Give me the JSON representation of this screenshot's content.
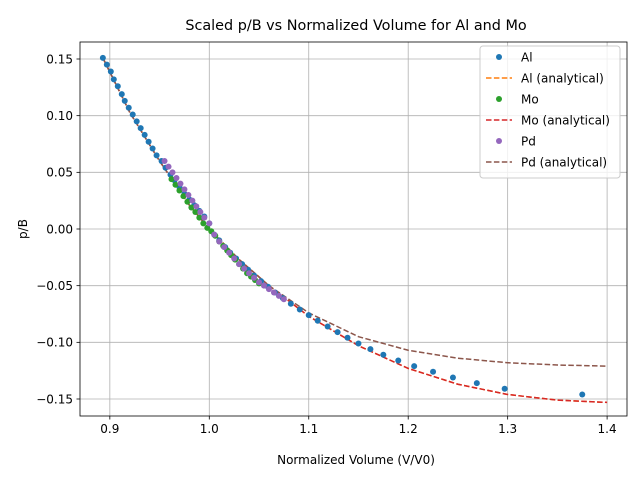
{
  "chart_data": {
    "type": "scatter",
    "title": "Scaled p/B vs Normalized Volume for Al and Mo",
    "xlabel": "Normalized Volume (V/V0)",
    "ylabel": "p/B",
    "xlim": [
      0.87,
      1.42
    ],
    "ylim": [
      -0.165,
      0.165
    ],
    "xticks": [
      0.9,
      1.0,
      1.1,
      1.2,
      1.3,
      1.4
    ],
    "xtick_labels": [
      "0.9",
      "1.0",
      "1.1",
      "1.2",
      "1.3",
      "1.4"
    ],
    "yticks": [
      -0.15,
      -0.1,
      -0.05,
      0.0,
      0.05,
      0.1,
      0.15
    ],
    "ytick_labels": [
      "−0.15",
      "−0.10",
      "−0.05",
      "0.00",
      "0.05",
      "0.10",
      "0.15"
    ],
    "grid": true,
    "legend_position": "top-right",
    "series": [
      {
        "name": "Al",
        "kind": "points",
        "color": "#1f77b4",
        "x": [
          0.893,
          0.897,
          0.901,
          0.904,
          0.908,
          0.912,
          0.915,
          0.919,
          0.923,
          0.927,
          0.931,
          0.935,
          0.939,
          0.943,
          0.947,
          0.952,
          0.956,
          0.961,
          0.965,
          0.97,
          0.975,
          0.98,
          0.985,
          0.99,
          0.995,
          1.0,
          1.005,
          1.01,
          1.016,
          1.021,
          1.027,
          1.033,
          1.039,
          1.045,
          1.052,
          1.059,
          1.066,
          1.074,
          1.082,
          1.091,
          1.1,
          1.109,
          1.119,
          1.129,
          1.139,
          1.15,
          1.162,
          1.175,
          1.19,
          1.206,
          1.225,
          1.245,
          1.269,
          1.297,
          1.375
        ],
        "y": [
          0.151,
          0.145,
          0.139,
          0.132,
          0.126,
          0.119,
          0.113,
          0.107,
          0.101,
          0.095,
          0.089,
          0.083,
          0.077,
          0.071,
          0.065,
          0.06,
          0.054,
          0.048,
          0.043,
          0.037,
          0.031,
          0.026,
          0.021,
          0.016,
          0.011,
          0.005,
          -0.005,
          -0.01,
          -0.016,
          -0.021,
          -0.026,
          -0.031,
          -0.036,
          -0.041,
          -0.046,
          -0.051,
          -0.056,
          -0.061,
          -0.066,
          -0.071,
          -0.076,
          -0.081,
          -0.086,
          -0.091,
          -0.096,
          -0.101,
          -0.106,
          -0.111,
          -0.116,
          -0.121,
          -0.126,
          -0.131,
          -0.136,
          -0.141,
          -0.146
        ]
      },
      {
        "name": "Al (analytical)",
        "kind": "line",
        "color": "#ff7f0e",
        "x": [
          0.893,
          0.92,
          0.95,
          0.98,
          1.0,
          1.03,
          1.06,
          1.1,
          1.15,
          1.2,
          1.25,
          1.3,
          1.35,
          1.4
        ],
        "y": [
          0.151,
          0.103,
          0.06,
          0.021,
          0.0,
          -0.027,
          -0.05,
          -0.077,
          -0.103,
          -0.123,
          -0.137,
          -0.146,
          -0.151,
          -0.153
        ]
      },
      {
        "name": "Mo",
        "kind": "points",
        "color": "#2ca02c",
        "x": [
          0.962,
          0.966,
          0.97,
          0.974,
          0.978,
          0.982,
          0.986,
          0.99,
          0.994,
          0.998,
          1.002,
          1.006,
          1.01,
          1.014,
          1.018,
          1.022,
          1.026,
          1.03,
          1.034,
          1.038,
          1.042,
          1.046,
          1.05
        ],
        "y": [
          0.044,
          0.039,
          0.034,
          0.029,
          0.024,
          0.019,
          0.015,
          0.01,
          0.005,
          0.001,
          -0.002,
          -0.006,
          -0.011,
          -0.015,
          -0.019,
          -0.023,
          -0.027,
          -0.031,
          -0.035,
          -0.039,
          -0.042,
          -0.045,
          -0.048
        ]
      },
      {
        "name": "Mo (analytical)",
        "kind": "line",
        "color": "#d62728",
        "x": [
          0.893,
          0.92,
          0.95,
          0.98,
          1.0,
          1.03,
          1.06,
          1.1,
          1.15,
          1.2,
          1.25,
          1.3,
          1.35,
          1.4
        ],
        "y": [
          0.151,
          0.103,
          0.06,
          0.021,
          0.0,
          -0.027,
          -0.05,
          -0.077,
          -0.103,
          -0.123,
          -0.137,
          -0.146,
          -0.151,
          -0.153
        ]
      },
      {
        "name": "Pd",
        "kind": "points",
        "color": "#9467bd",
        "x": [
          0.955,
          0.959,
          0.963,
          0.967,
          0.971,
          0.975,
          0.979,
          0.983,
          0.987,
          0.991,
          0.995,
          1.0,
          1.005,
          1.01,
          1.015,
          1.02,
          1.025,
          1.03,
          1.035,
          1.04,
          1.045,
          1.05,
          1.055,
          1.06,
          1.065,
          1.07,
          1.075
        ],
        "y": [
          0.06,
          0.055,
          0.05,
          0.045,
          0.04,
          0.035,
          0.03,
          0.025,
          0.02,
          0.015,
          0.01,
          0.005,
          -0.005,
          -0.011,
          -0.016,
          -0.021,
          -0.026,
          -0.031,
          -0.035,
          -0.039,
          -0.043,
          -0.047,
          -0.05,
          -0.053,
          -0.056,
          -0.059,
          -0.062
        ]
      },
      {
        "name": "Pd (analytical)",
        "kind": "line",
        "color": "#8c564b",
        "x": [
          0.893,
          0.92,
          0.95,
          0.98,
          1.0,
          1.03,
          1.06,
          1.1,
          1.15,
          1.2,
          1.25,
          1.3,
          1.35,
          1.4
        ],
        "y": [
          0.151,
          0.103,
          0.06,
          0.021,
          0.0,
          -0.027,
          -0.05,
          -0.074,
          -0.095,
          -0.107,
          -0.114,
          -0.118,
          -0.12,
          -0.121
        ]
      }
    ]
  }
}
